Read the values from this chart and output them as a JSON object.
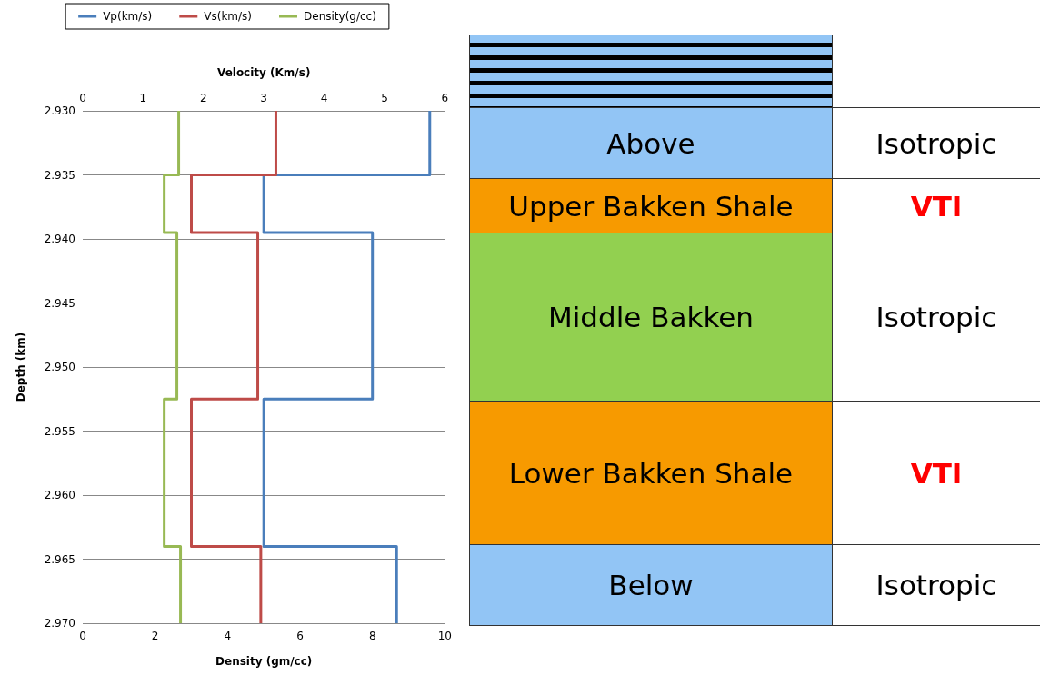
{
  "chart_data": [
    {
      "type": "line",
      "orientation": "horizontal",
      "xlabel": "Density (gm/cc)",
      "x2label": "Velocity (Km/s)",
      "ylabel": "Depth (km)",
      "legend": "top",
      "grid": "y",
      "marker": "none",
      "line_style": "solid",
      "ylim": [
        2.97,
        2.93
      ],
      "yticks": [
        {
          "value": 2.93,
          "label": "2.930"
        },
        {
          "value": 2.935,
          "label": "2.935"
        },
        {
          "value": 2.94,
          "label": "2.940"
        },
        {
          "value": 2.945,
          "label": "2.945"
        },
        {
          "value": 2.95,
          "label": "2.950"
        },
        {
          "value": 2.955,
          "label": "2.955"
        },
        {
          "value": 2.96,
          "label": "2.960"
        },
        {
          "value": 2.965,
          "label": "2.965"
        },
        {
          "value": 2.97,
          "label": "2.970"
        }
      ],
      "xlim": [
        0,
        10
      ],
      "xticks": [
        0,
        2,
        4,
        6,
        8,
        10
      ],
      "x2lim": [
        0,
        6
      ],
      "x2ticks": [
        0,
        1,
        2,
        3,
        4,
        5,
        6
      ],
      "series": [
        {
          "name": "Vp(km/s)",
          "color": "#4a7ebb",
          "axis": "x2",
          "x": [
            2.93,
            2.935,
            2.935,
            2.9395,
            2.9395,
            2.9525,
            2.9525,
            2.964,
            2.964,
            2.97
          ],
          "values": [
            5.75,
            5.75,
            3.0,
            3.0,
            4.8,
            4.8,
            3.0,
            3.0,
            5.2,
            5.2
          ]
        },
        {
          "name": "Vs(km/s)",
          "color": "#be4b48",
          "axis": "x2",
          "x": [
            2.93,
            2.935,
            2.935,
            2.9395,
            2.9395,
            2.9525,
            2.9525,
            2.964,
            2.964,
            2.97
          ],
          "values": [
            3.2,
            3.2,
            1.8,
            1.8,
            2.9,
            2.9,
            1.8,
            1.8,
            2.95,
            2.95
          ]
        },
        {
          "name": "Density(g/cc)",
          "color": "#98b954",
          "x": [
            2.93,
            2.935,
            2.935,
            2.9395,
            2.9395,
            2.9525,
            2.9525,
            2.964,
            2.964,
            2.97
          ],
          "values": [
            2.65,
            2.65,
            2.25,
            2.25,
            2.6,
            2.6,
            2.25,
            2.25,
            2.7,
            2.7
          ]
        }
      ]
    },
    {
      "type": "other",
      "annotations": [
        "Above",
        "Isotropic",
        "Upper Bakken Shale",
        "VTI",
        "Middle Bakken",
        "Isotropic",
        "Lower Bakken Shale",
        "VTI",
        "Below",
        "Isotropic"
      ]
    }
  ]
}
